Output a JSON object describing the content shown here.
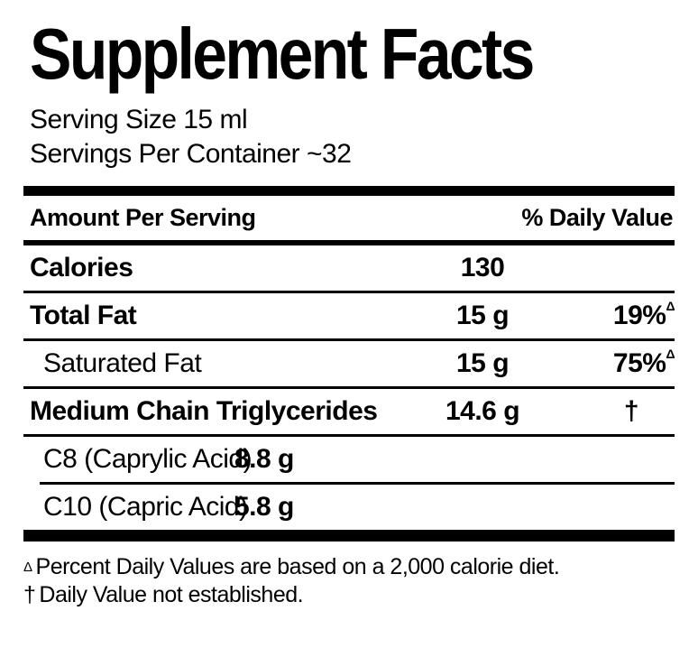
{
  "label": {
    "title": "Supplement Facts",
    "serving": {
      "size": "Serving Size 15 ml",
      "per_container": "Servings Per Container ~32"
    },
    "header": {
      "amount_per_serving": "Amount Per Serving",
      "daily_value": "% Daily Value"
    },
    "rows": [
      {
        "name": "Calories",
        "amount": "130",
        "dv": "",
        "dv_mark": ""
      },
      {
        "name": "Total Fat",
        "amount": "15 g",
        "dv": "19%",
        "dv_mark": "Δ"
      },
      {
        "name": "Saturated Fat",
        "amount": "15 g",
        "dv": "75%",
        "dv_mark": "Δ"
      },
      {
        "name": "Medium Chain Triglycerides",
        "amount": "14.6 g",
        "dv": "†",
        "dv_mark": ""
      },
      {
        "name": "C8 (Caprylic Acid)",
        "amount": "8.8 g",
        "dv": "",
        "dv_mark": ""
      },
      {
        "name": "C10 (Capric Acid)",
        "amount": "5.8 g",
        "dv": "",
        "dv_mark": ""
      }
    ],
    "footnotes": [
      {
        "marker": "Δ",
        "text": "Percent Daily Values are based on a 2,000 calorie diet."
      },
      {
        "marker": "†",
        "text": "Daily Value not established."
      }
    ],
    "colors": {
      "background": "#ffffff",
      "text": "#000000"
    }
  }
}
